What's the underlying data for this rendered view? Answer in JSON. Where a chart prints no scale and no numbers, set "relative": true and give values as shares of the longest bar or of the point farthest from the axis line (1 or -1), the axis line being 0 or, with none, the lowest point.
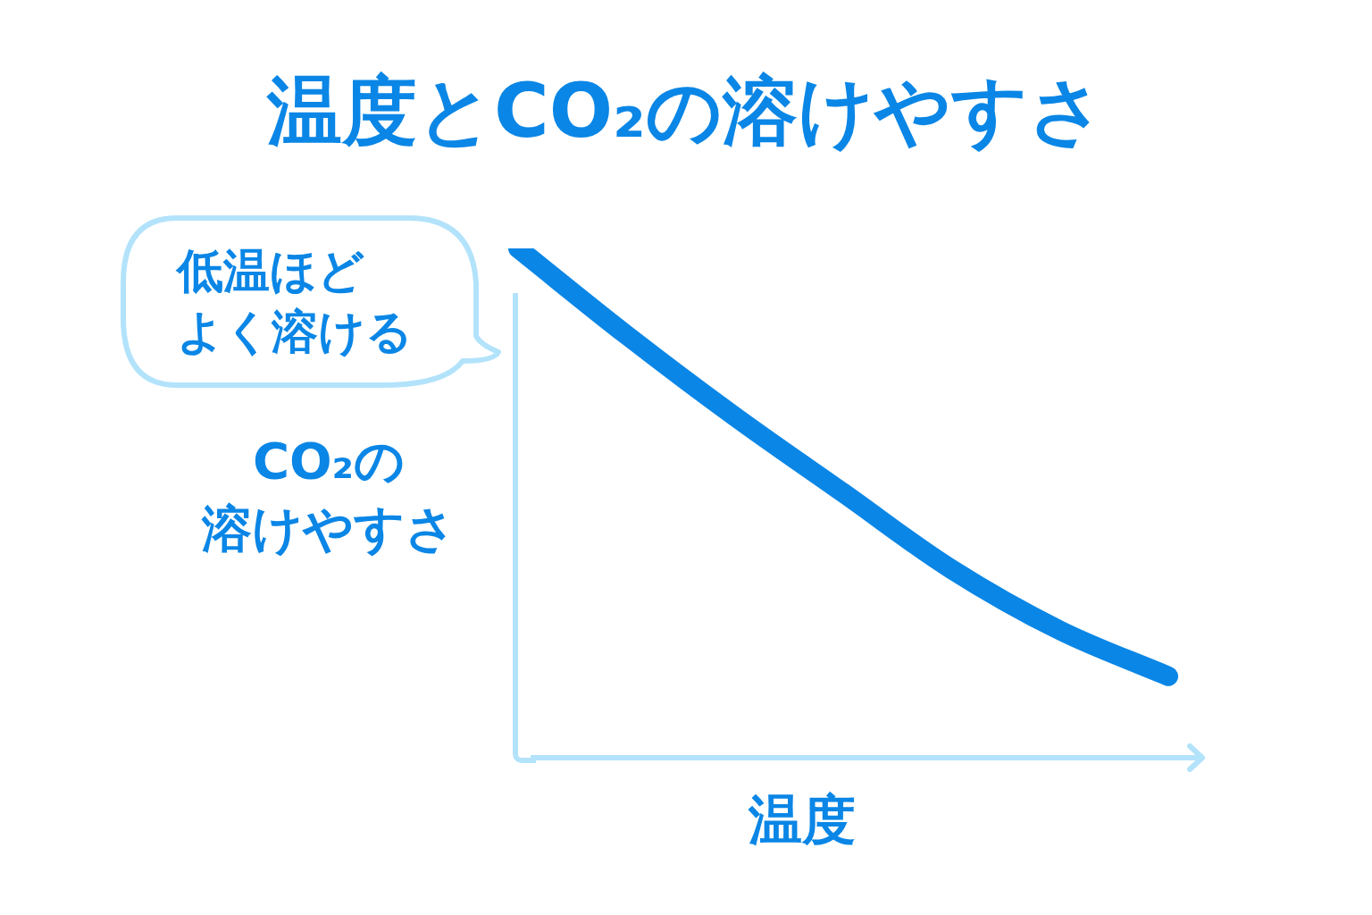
{
  "chart_data": {
    "type": "line",
    "title": "温度とCO₂の溶けやすさ",
    "xlabel": "温度",
    "ylabel": "CO₂の溶けやすさ",
    "annotations": [
      "低温ほどよく溶ける"
    ],
    "relative": true,
    "categories": [
      null,
      null,
      null,
      null,
      null,
      null,
      null
    ],
    "series": [
      {
        "color": "#0a86e6",
        "values": [
          1,
          0.83,
          0.67,
          0.52,
          0.37,
          0.25,
          0.16
        ]
      }
    ],
    "legend": false,
    "marker": "none",
    "line_style": "solid"
  }
}
